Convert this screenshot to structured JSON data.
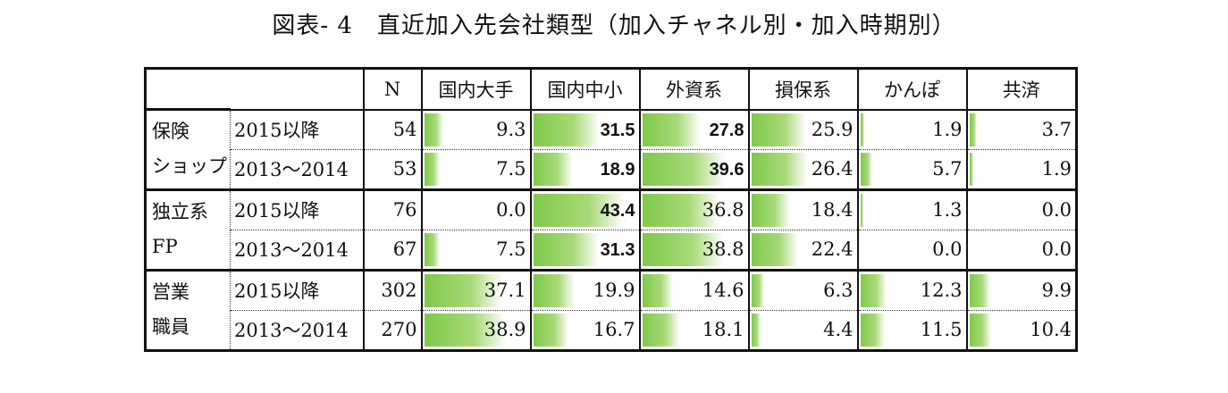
{
  "title": "図表- 4　直近加入先会社類型（加入チャネル別・加入時期別）",
  "chart_data": {
    "type": "table",
    "columns": [
      "N",
      "国内大手",
      "国内中小",
      "外資系",
      "損保系",
      "かんぽ",
      "共済"
    ],
    "bar_color": "#7fc94a",
    "groups": [
      {
        "label_line1": "保険",
        "label_line2": "ショップ",
        "rows": [
          {
            "period": "2015以降",
            "n": "54",
            "values": [
              "9.3",
              "31.5",
              "27.8",
              "25.9",
              "1.9",
              "3.7"
            ],
            "bold": [
              false,
              true,
              true,
              false,
              false,
              false
            ]
          },
          {
            "period": "2013～2014",
            "n": "53",
            "values": [
              "7.5",
              "18.9",
              "39.6",
              "26.4",
              "5.7",
              "1.9"
            ],
            "bold": [
              false,
              true,
              true,
              false,
              false,
              false
            ]
          }
        ]
      },
      {
        "label_line1": "独立系",
        "label_line2": "FP",
        "rows": [
          {
            "period": "2015以降",
            "n": "76",
            "values": [
              "0.0",
              "43.4",
              "36.8",
              "18.4",
              "1.3",
              "0.0"
            ],
            "bold": [
              false,
              true,
              false,
              false,
              false,
              false
            ]
          },
          {
            "period": "2013～2014",
            "n": "67",
            "values": [
              "7.5",
              "31.3",
              "38.8",
              "22.4",
              "0.0",
              "0.0"
            ],
            "bold": [
              false,
              true,
              false,
              false,
              false,
              false
            ]
          }
        ]
      },
      {
        "label_line1": "営業",
        "label_line2": "職員",
        "rows": [
          {
            "period": "2015以降",
            "n": "302",
            "values": [
              "37.1",
              "19.9",
              "14.6",
              "6.3",
              "12.3",
              "9.9"
            ],
            "bold": [
              false,
              false,
              false,
              false,
              false,
              false
            ]
          },
          {
            "period": "2013～2014",
            "n": "270",
            "values": [
              "38.9",
              "16.7",
              "18.1",
              "4.4",
              "11.5",
              "10.4"
            ],
            "bold": [
              false,
              false,
              false,
              false,
              false,
              false
            ]
          }
        ]
      }
    ]
  }
}
